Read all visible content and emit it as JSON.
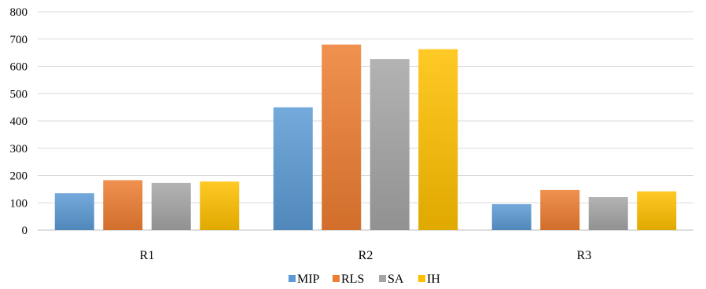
{
  "chart_data": {
    "type": "bar",
    "title": "",
    "xlabel": "",
    "ylabel": "",
    "categories": [
      "R1",
      "R2",
      "R3"
    ],
    "series": [
      {
        "name": "MIP",
        "color": "#5b9bd5",
        "values": [
          135,
          450,
          95
        ]
      },
      {
        "name": "RLS",
        "color": "#ed7d31",
        "values": [
          183,
          680,
          147
        ]
      },
      {
        "name": "SA",
        "color": "#a5a5a5",
        "values": [
          173,
          627,
          121
        ]
      },
      {
        "name": "IH",
        "color": "#ffc000",
        "values": [
          178,
          663,
          142
        ]
      }
    ],
    "ylim": [
      0,
      800
    ],
    "yticks": [
      "0",
      "100",
      "200",
      "300",
      "400",
      "500",
      "600",
      "700",
      "800"
    ],
    "grid": true,
    "legend_position": "bottom"
  }
}
